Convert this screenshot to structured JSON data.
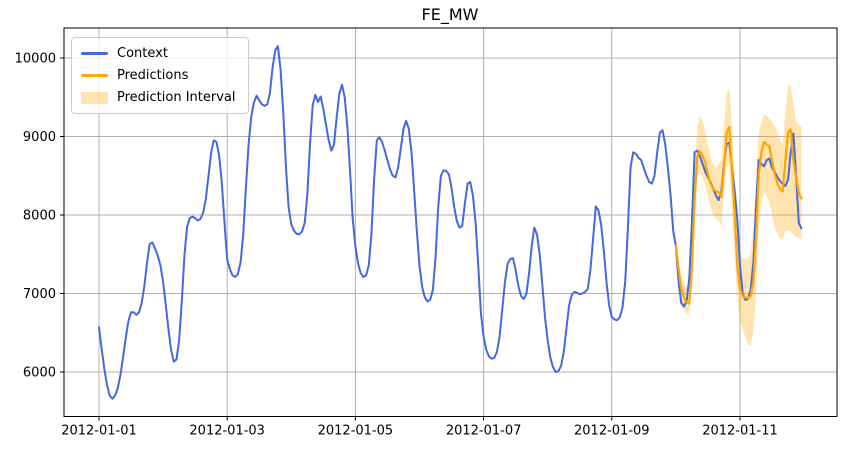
{
  "title": "FE_MW",
  "legend": {
    "items": [
      {
        "label": "Context"
      },
      {
        "label": "Predictions"
      },
      {
        "label": "Prediction Interval"
      }
    ]
  },
  "colors": {
    "context": "#4169e1",
    "predictions": "#ffa500",
    "interval_fill": "rgba(255,165,0,0.3)",
    "grid": "#b0b0b0",
    "spine": "#000000",
    "text": "#000000"
  },
  "chart_data": {
    "type": "line",
    "title": "FE_MW",
    "xlabel": "",
    "ylabel": "",
    "grid": true,
    "legend_position": "upper left",
    "x_unit": "hours",
    "x_start": "2012-01-01 00:00",
    "x_tick_labels": [
      "2012-01-01",
      "2012-01-03",
      "2012-01-05",
      "2012-01-07",
      "2012-01-09",
      "2012-01-11"
    ],
    "x_tick_days": [
      0,
      2,
      4,
      6,
      8,
      10
    ],
    "y_ticks": [
      6000,
      7000,
      8000,
      9000,
      10000
    ],
    "ylim": [
      5430,
      10380
    ],
    "xlim_days": [
      -0.546,
      11.51
    ],
    "series": [
      {
        "name": "Context",
        "start_day": 0,
        "values": [
          6570,
          6290,
          6040,
          5840,
          5700,
          5660,
          5700,
          5790,
          5960,
          6180,
          6430,
          6650,
          6760,
          6760,
          6730,
          6760,
          6880,
          7100,
          7400,
          7630,
          7650,
          7570,
          7480,
          7360,
          7150,
          6850,
          6550,
          6280,
          6130,
          6160,
          6400,
          6900,
          7500,
          7850,
          7960,
          7980,
          7960,
          7930,
          7950,
          8030,
          8200,
          8500,
          8800,
          8950,
          8930,
          8750,
          8400,
          7900,
          7430,
          7310,
          7230,
          7210,
          7250,
          7400,
          7750,
          8350,
          8900,
          9250,
          9430,
          9520,
          9460,
          9410,
          9390,
          9410,
          9550,
          9880,
          10100,
          10150,
          9850,
          9300,
          8600,
          8100,
          7880,
          7800,
          7760,
          7755,
          7790,
          7900,
          8250,
          8900,
          9400,
          9530,
          9440,
          9510,
          9350,
          9150,
          8950,
          8820,
          8900,
          9250,
          9550,
          9660,
          9500,
          9120,
          8550,
          7950,
          7600,
          7380,
          7260,
          7210,
          7230,
          7360,
          7750,
          8450,
          8950,
          8990,
          8930,
          8820,
          8700,
          8580,
          8500,
          8480,
          8600,
          8850,
          9100,
          9200,
          9100,
          8800,
          8300,
          7800,
          7350,
          7080,
          6950,
          6900,
          6920,
          7050,
          7450,
          8100,
          8500,
          8570,
          8560,
          8520,
          8350,
          8100,
          7920,
          7840,
          7860,
          8150,
          8400,
          8420,
          8250,
          7900,
          7350,
          6750,
          6450,
          6280,
          6200,
          6170,
          6180,
          6260,
          6450,
          6800,
          7150,
          7380,
          7440,
          7450,
          7300,
          7100,
          6970,
          6930,
          6990,
          7250,
          7600,
          7840,
          7750,
          7500,
          7100,
          6700,
          6400,
          6180,
          6060,
          6000,
          6010,
          6080,
          6250,
          6550,
          6850,
          6980,
          7020,
          7010,
          6990,
          7000,
          7020,
          7060,
          7300,
          7700,
          8110,
          8060,
          7880,
          7550,
          7150,
          6850,
          6700,
          6670,
          6660,
          6700,
          6820,
          7150,
          7800,
          8600,
          8800,
          8780,
          8730,
          8700,
          8600,
          8500,
          8420,
          8400,
          8500,
          8800,
          9050,
          9080,
          8900,
          8600,
          8250,
          7800,
          7600,
          7150,
          6880,
          6835,
          6900,
          7200,
          7900,
          8800,
          8820,
          8750,
          8650,
          8550,
          8480,
          8420,
          8330,
          8250,
          8190,
          8300,
          8650,
          8900,
          8920,
          8600,
          8300,
          7950,
          7350,
          7000,
          6920,
          6930,
          7050,
          7400,
          8100,
          8700,
          8650,
          8620,
          8700,
          8720,
          8600,
          8550,
          8480,
          8430,
          8400,
          8370,
          8450,
          8800,
          9040,
          8500,
          7900,
          7830
        ]
      },
      {
        "name": "Predictions",
        "start_day": 9,
        "values": [
          7610,
          7300,
          7060,
          6950,
          6890,
          6870,
          7300,
          8200,
          8750,
          8810,
          8760,
          8660,
          8520,
          8400,
          8330,
          8300,
          8290,
          8230,
          8600,
          9050,
          9120,
          8550,
          8020,
          7350,
          7050,
          6970,
          6950,
          6940,
          6970,
          7150,
          7700,
          8500,
          8800,
          8930,
          8900,
          8870,
          8700,
          8520,
          8400,
          8330,
          8300,
          8700,
          9060,
          9090,
          8700,
          8470,
          8280,
          8210
        ]
      },
      {
        "name": "Prediction Interval",
        "start_day": 9,
        "lower": [
          7480,
          7150,
          6900,
          6800,
          6740,
          6720,
          7100,
          7950,
          8500,
          8550,
          8480,
          8380,
          8230,
          8100,
          8000,
          7950,
          7930,
          7850,
          8250,
          8600,
          8650,
          8050,
          7500,
          6900,
          6650,
          6550,
          6450,
          6350,
          6330,
          6500,
          7000,
          7800,
          8150,
          8300,
          8250,
          8150,
          8000,
          7850,
          7750,
          7700,
          7680,
          7800,
          7800,
          7800,
          7750,
          7720,
          7700,
          7700
        ],
        "upper": [
          7760,
          7450,
          7250,
          7120,
          7080,
          7100,
          7600,
          8550,
          9100,
          9270,
          9200,
          9050,
          8900,
          8750,
          8650,
          8600,
          8650,
          8700,
          9150,
          9550,
          9620,
          9150,
          8500,
          7900,
          7550,
          7450,
          7430,
          7450,
          7520,
          7850,
          8450,
          9050,
          9200,
          9280,
          9260,
          9230,
          9180,
          9130,
          9050,
          8950,
          8900,
          9300,
          9640,
          9656,
          9400,
          9200,
          9150,
          9140
        ]
      }
    ]
  }
}
